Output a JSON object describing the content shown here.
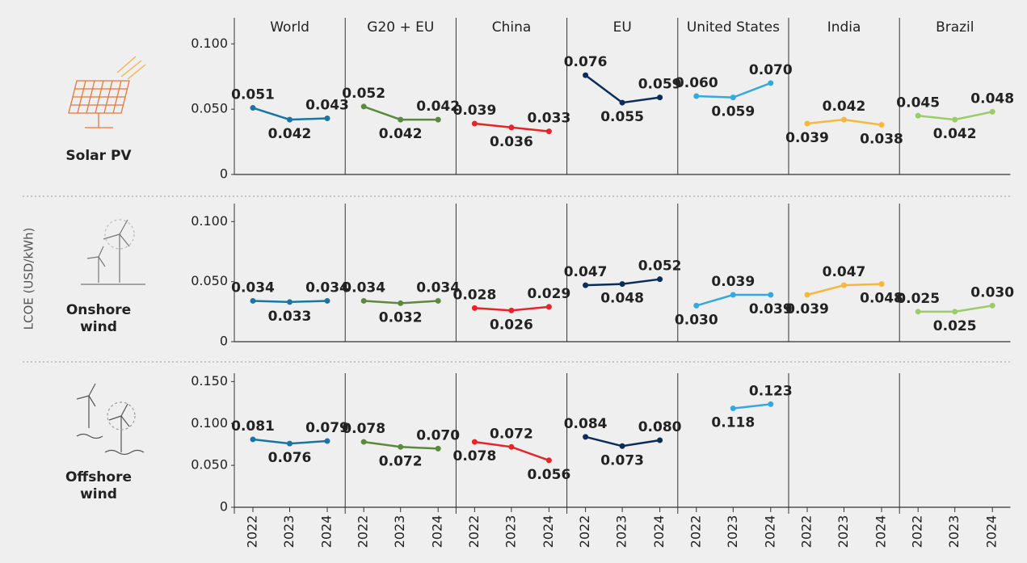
{
  "y_axis_label": "LCOE (USD/kWh)",
  "regions": [
    "World",
    "G20 + EU",
    "China",
    "EU",
    "United States",
    "India",
    "Brazil"
  ],
  "chart_data": [
    {
      "type": "line",
      "title": "Solar PV",
      "x": [
        "2022",
        "2023",
        "2024"
      ],
      "ylim": [
        0,
        0.12
      ],
      "yticks": [
        0,
        {
          "value": 0.05,
          "label": "0.050"
        },
        {
          "value": 0.1,
          "label": "0.100"
        }
      ],
      "series": [
        {
          "color": "#1b75a3",
          "values": [
            0.051,
            0.042,
            0.043
          ],
          "value_labels": [
            "0.051",
            "0.042",
            "0.043"
          ]
        },
        {
          "color": "#5a8a3c",
          "values": [
            0.052,
            0.042,
            0.042
          ],
          "value_labels": [
            "0.052",
            "0.042",
            "0.042"
          ]
        },
        {
          "color": "#e4252b",
          "values": [
            0.039,
            0.036,
            0.033
          ],
          "value_labels": [
            "0.039",
            "0.036",
            "0.033"
          ]
        },
        {
          "color": "#0c2d57",
          "values": [
            0.076,
            0.055,
            0.059
          ],
          "value_labels": [
            "0.076",
            "0.055",
            "0.059"
          ]
        },
        {
          "color": "#36a8e0",
          "values": [
            0.06,
            0.059,
            0.07
          ],
          "value_labels": [
            "0.060",
            "0.059",
            "0.070"
          ]
        },
        {
          "color": "#f5b73c",
          "values": [
            0.039,
            0.042,
            0.038
          ],
          "value_labels": [
            "0.039",
            "0.042",
            "0.038"
          ]
        },
        {
          "color": "#9acd68",
          "values": [
            0.045,
            0.042,
            0.048
          ],
          "value_labels": [
            "0.045",
            "0.042",
            "0.048"
          ]
        }
      ]
    },
    {
      "type": "line",
      "title": "Onshore wind",
      "x": [
        "2022",
        "2023",
        "2024"
      ],
      "ylim": [
        0,
        0.115
      ],
      "yticks": [
        0,
        {
          "value": 0.05,
          "label": "0.050"
        },
        {
          "value": 0.1,
          "label": "0.100"
        }
      ],
      "series": [
        {
          "color": "#1b75a3",
          "values": [
            0.034,
            0.033,
            0.034
          ],
          "value_labels": [
            "0.034",
            "0.033",
            "0.034"
          ]
        },
        {
          "color": "#5a8a3c",
          "values": [
            0.034,
            0.032,
            0.034
          ],
          "value_labels": [
            "0.034",
            "0.032",
            "0.034"
          ]
        },
        {
          "color": "#e4252b",
          "values": [
            0.028,
            0.026,
            0.029
          ],
          "value_labels": [
            "0.028",
            "0.026",
            "0.029"
          ]
        },
        {
          "color": "#0c2d57",
          "values": [
            0.047,
            0.048,
            0.052
          ],
          "value_labels": [
            "0.047",
            "0.048",
            "0.052"
          ]
        },
        {
          "color": "#36a8e0",
          "values": [
            0.03,
            0.039,
            0.039
          ],
          "value_labels": [
            "0.030",
            "0.039",
            "0.039"
          ]
        },
        {
          "color": "#f5b73c",
          "values": [
            0.039,
            0.047,
            0.048
          ],
          "value_labels": [
            "0.039",
            "0.047",
            "0.048"
          ]
        },
        {
          "color": "#9acd68",
          "values": [
            0.025,
            0.025,
            0.03
          ],
          "value_labels": [
            "0.025",
            "0.025",
            "0.030"
          ]
        }
      ]
    },
    {
      "type": "line",
      "title": "Offshore wind",
      "x": [
        "2022",
        "2023",
        "2024"
      ],
      "ylim": [
        0,
        0.16
      ],
      "yticks": [
        0,
        {
          "value": 0.05,
          "label": "0.050"
        },
        {
          "value": 0.1,
          "label": "0.100"
        },
        {
          "value": 0.15,
          "label": "0.150"
        }
      ],
      "series": [
        {
          "color": "#1b75a3",
          "values": [
            0.081,
            0.076,
            0.079
          ],
          "value_labels": [
            "0.081",
            "0.076",
            "0.079"
          ]
        },
        {
          "color": "#5a8a3c",
          "values": [
            0.078,
            0.072,
            0.07
          ],
          "value_labels": [
            "0.078",
            "0.072",
            "0.070"
          ]
        },
        {
          "color": "#e4252b",
          "values": [
            0.078,
            0.072,
            0.056
          ],
          "value_labels": [
            "0.078",
            "0.072",
            "0.056"
          ]
        },
        {
          "color": "#0c2d57",
          "values": [
            0.084,
            0.073,
            0.08
          ],
          "value_labels": [
            "0.084",
            "0.073",
            "0.080"
          ]
        },
        {
          "color": "#36a8e0",
          "values": [
            null,
            0.118,
            0.123
          ],
          "value_labels": [
            null,
            "0.118",
            "0.123"
          ]
        },
        {
          "color": "#f5b73c",
          "values": [
            null,
            null,
            null
          ],
          "value_labels": [
            null,
            null,
            null
          ]
        },
        {
          "color": "#9acd68",
          "values": [
            null,
            null,
            null
          ],
          "value_labels": [
            null,
            null,
            null
          ]
        }
      ]
    }
  ]
}
